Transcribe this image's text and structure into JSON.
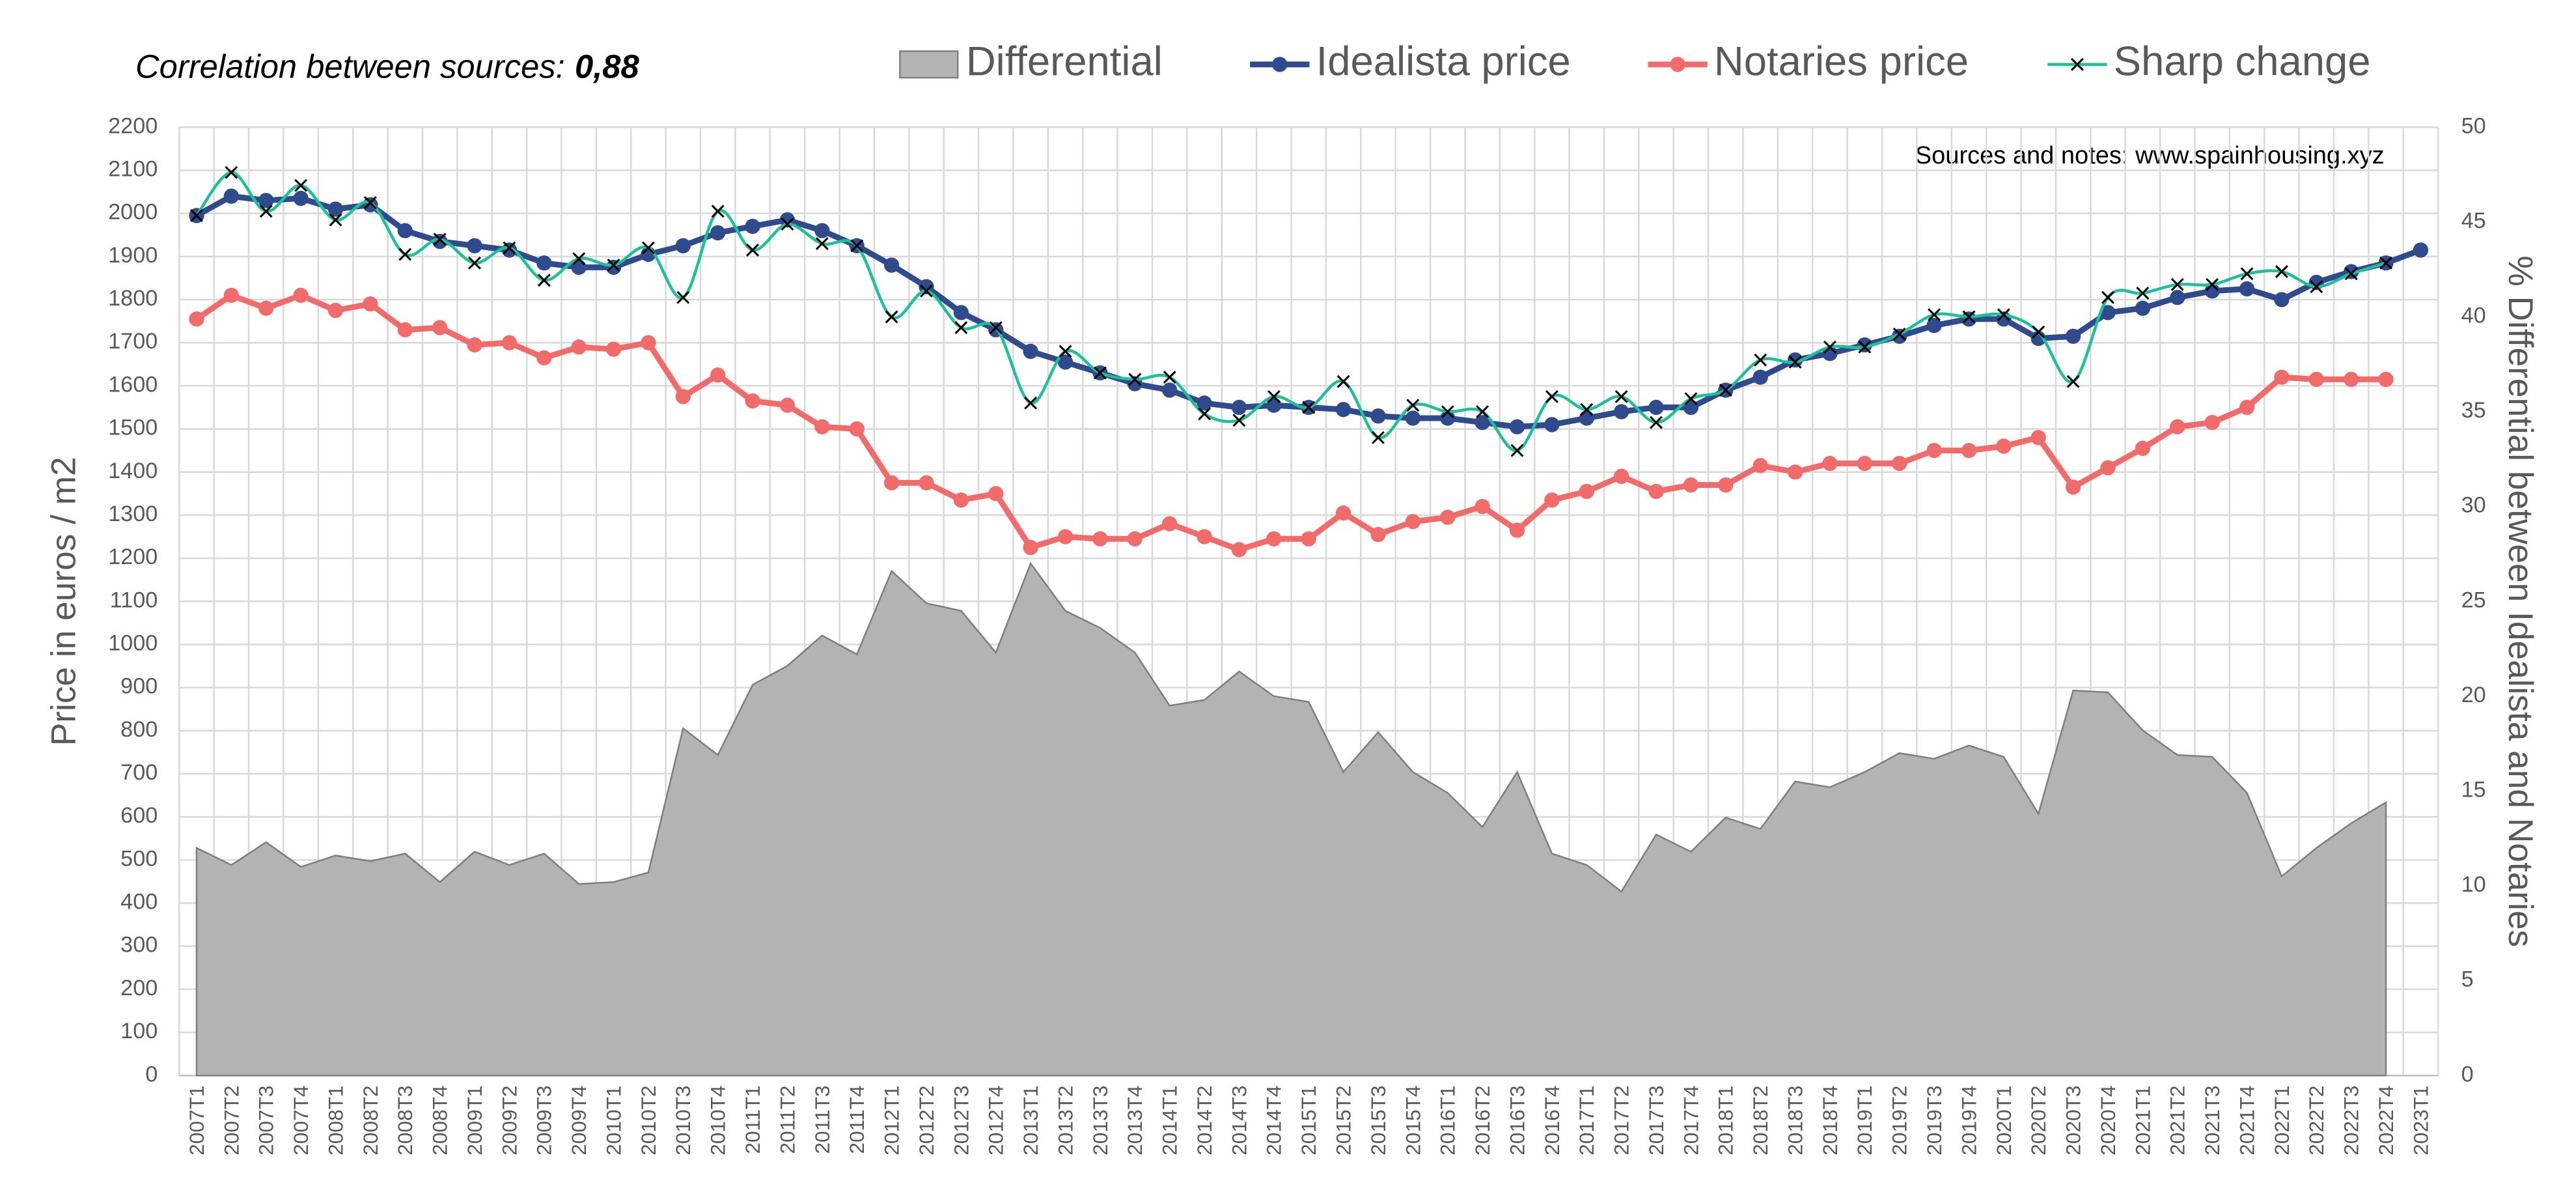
{
  "chart_data": {
    "type": "line",
    "annotations": {
      "correlation_label": "Correlation between sources:",
      "correlation_value": "0,88",
      "sources": "Sources and notes: www.spainhousing.xyz"
    },
    "y_label": "Price in euros / m2",
    "y2_label": "% Differential between Idealista and Notaries",
    "legend": "top",
    "grid": true,
    "categories": [
      "2007T1",
      "2007T2",
      "2007T3",
      "2007T4",
      "2008T1",
      "2008T2",
      "2008T3",
      "2008T4",
      "2009T1",
      "2009T2",
      "2009T3",
      "2009T4",
      "2010T1",
      "2010T2",
      "2010T3",
      "2010T4",
      "2011T1",
      "2011T2",
      "2011T3",
      "2011T4",
      "2012T1",
      "2012T2",
      "2012T3",
      "2012T4",
      "2013T1",
      "2013T2",
      "2013T3",
      "2013T4",
      "2014T1",
      "2014T2",
      "2014T3",
      "2014T4",
      "2015T1",
      "2015T2",
      "2015T3",
      "2015T4",
      "2016T1",
      "2016T2",
      "2016T3",
      "2016T4",
      "2017T1",
      "2017T2",
      "2017T3",
      "2017T4",
      "2018T1",
      "2018T2",
      "2018T3",
      "2018T4",
      "2019T1",
      "2019T2",
      "2019T3",
      "2019T4",
      "2020T1",
      "2020T2",
      "2020T3",
      "2020T4",
      "2021T1",
      "2021T2",
      "2021T3",
      "2021T4",
      "2022T1",
      "2022T2",
      "2022T3",
      "2022T4",
      "2023T1"
    ],
    "ylim": [
      0,
      2200
    ],
    "yticks": [
      0,
      100,
      200,
      300,
      400,
      500,
      600,
      700,
      800,
      900,
      1000,
      1100,
      1200,
      1300,
      1400,
      1500,
      1600,
      1700,
      1800,
      1900,
      2000,
      2100,
      2200
    ],
    "y2lim": [
      0,
      50
    ],
    "y2ticks": [
      0,
      5,
      10,
      15,
      20,
      25,
      30,
      35,
      40,
      45,
      50
    ],
    "series": [
      {
        "name": "Differential",
        "type": "area",
        "axis": "y2",
        "color": "#b3b3b3",
        "values": [
          12.0,
          11.1,
          12.3,
          11.0,
          11.6,
          11.3,
          11.7,
          10.2,
          11.8,
          11.1,
          11.7,
          10.1,
          10.2,
          10.7,
          18.3,
          16.9,
          20.6,
          21.6,
          23.2,
          22.2,
          26.6,
          24.9,
          24.5,
          22.3,
          27.0,
          24.5,
          23.6,
          22.3,
          19.5,
          19.8,
          21.3,
          20.0,
          19.7,
          16.0,
          18.1,
          16.0,
          14.9,
          13.1,
          16.0,
          11.7,
          11.1,
          9.7,
          12.7,
          11.8,
          13.6,
          13.0,
          15.5,
          15.2,
          16.0,
          17.0,
          16.7,
          17.4,
          16.8,
          13.8,
          20.3,
          20.2,
          18.2,
          16.9,
          16.8,
          14.9,
          10.5,
          12.0,
          13.3,
          14.4,
          null
        ]
      },
      {
        "name": "Idealista price",
        "type": "line",
        "marker": "circle",
        "color": "#2f4b8d",
        "values": [
          1995,
          2040,
          2030,
          2035,
          2010,
          2020,
          1960,
          1935,
          1925,
          1915,
          1885,
          1875,
          1875,
          1905,
          1925,
          1955,
          1970,
          1985,
          1960,
          1925,
          1880,
          1830,
          1770,
          1730,
          1680,
          1655,
          1630,
          1605,
          1590,
          1560,
          1550,
          1555,
          1550,
          1545,
          1530,
          1525,
          1525,
          1515,
          1505,
          1510,
          1525,
          1540,
          1550,
          1550,
          1590,
          1620,
          1660,
          1675,
          1695,
          1715,
          1740,
          1755,
          1755,
          1710,
          1715,
          1770,
          1780,
          1805,
          1820,
          1825,
          1800,
          1840,
          1865,
          1885,
          1915
        ]
      },
      {
        "name": "Notaries price",
        "type": "line",
        "marker": "circle",
        "color": "#f26b6b",
        "values": [
          1755,
          1810,
          1780,
          1810,
          1775,
          1790,
          1730,
          1735,
          1695,
          1700,
          1665,
          1690,
          1685,
          1700,
          1575,
          1625,
          1565,
          1555,
          1505,
          1500,
          1375,
          1375,
          1335,
          1350,
          1225,
          1250,
          1245,
          1245,
          1280,
          1250,
          1220,
          1245,
          1245,
          1305,
          1255,
          1285,
          1295,
          1320,
          1265,
          1335,
          1355,
          1390,
          1355,
          1370,
          1370,
          1415,
          1400,
          1420,
          1420,
          1420,
          1450,
          1450,
          1460,
          1480,
          1365,
          1410,
          1455,
          1505,
          1515,
          1550,
          1620,
          1615,
          1615,
          1615,
          null
        ]
      },
      {
        "name": "Sharp change",
        "type": "smooth",
        "marker": "x",
        "color": "#1fbf9b",
        "values": [
          1995,
          2095,
          2005,
          2065,
          1985,
          2025,
          1905,
          1940,
          1885,
          1920,
          1845,
          1895,
          1880,
          1920,
          1805,
          2005,
          1915,
          1975,
          1930,
          1925,
          1760,
          1820,
          1735,
          1735,
          1560,
          1680,
          1630,
          1615,
          1620,
          1535,
          1520,
          1575,
          1550,
          1610,
          1480,
          1555,
          1540,
          1540,
          1450,
          1575,
          1545,
          1575,
          1515,
          1570,
          1590,
          1660,
          1655,
          1690,
          1690,
          1720,
          1765,
          1760,
          1765,
          1725,
          1610,
          1805,
          1815,
          1835,
          1835,
          1860,
          1865,
          1830,
          1860,
          1885,
          null
        ]
      }
    ]
  }
}
